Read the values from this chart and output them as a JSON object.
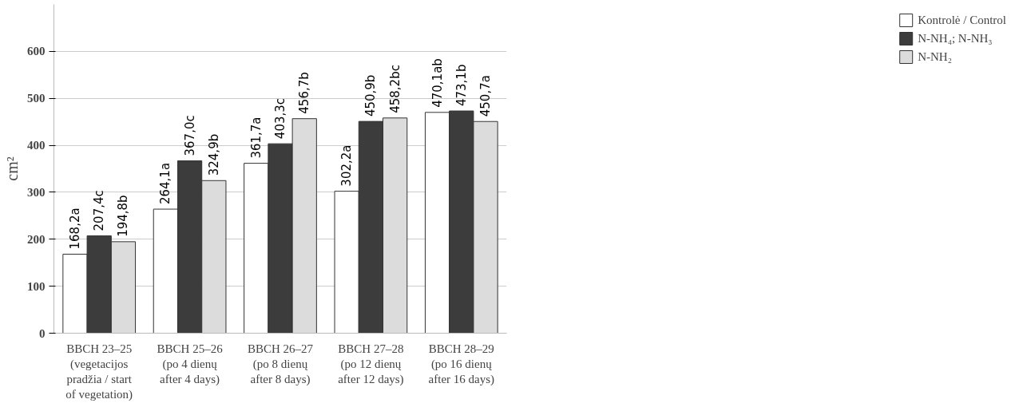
{
  "chart_data": {
    "type": "bar",
    "ylabel": "cm²",
    "categories": [
      "BBCH 23–25\n(vegetacijos\npradžia / start\nof vegetation)",
      "BBCH 25–26\n(po 4 dienų\nafter 4 days)",
      "BBCH 26–27\n(po 8 dienų\nafter 8 days)",
      "BBCH 27–28\n(po 12 dienų\nafter 12 days)",
      "BBCH 28–29\n(po 16 dienų\nafter 16 days)"
    ],
    "series": [
      {
        "name": "Kontrolė / Control",
        "color": "#ffffff",
        "values": [
          168.2,
          264.1,
          361.7,
          302.2,
          470.1
        ],
        "value_labels": [
          "168,2a",
          "264,1a",
          "361,7a",
          "302,2a",
          "470,1ab"
        ]
      },
      {
        "name": "N-NH₄; N-NH₃",
        "color": "#3c3c3c",
        "values": [
          207.4,
          367.0,
          403.3,
          450.9,
          473.1
        ],
        "value_labels": [
          "207,4c",
          "367,0c",
          "403,3c",
          "450,9b",
          "473,1b"
        ]
      },
      {
        "name": "N-NH₂",
        "color": "#dcdcdc",
        "values": [
          194.8,
          324.9,
          456.7,
          458.2,
          450.7
        ],
        "value_labels": [
          "194,8b",
          "324,9b",
          "456,7b",
          "458,2bc",
          "450,7a"
        ]
      }
    ],
    "ylim": [
      0,
      700
    ],
    "yticks": [
      0,
      100,
      200,
      300,
      400,
      500,
      600
    ],
    "grid": "y",
    "legend": "right"
  }
}
